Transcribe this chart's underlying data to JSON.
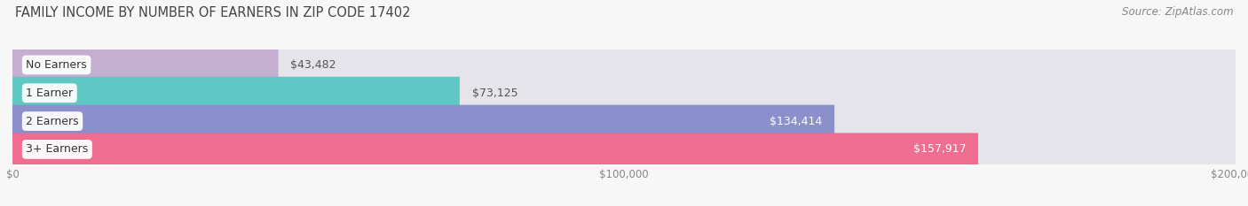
{
  "title": "FAMILY INCOME BY NUMBER OF EARNERS IN ZIP CODE 17402",
  "source": "Source: ZipAtlas.com",
  "categories": [
    "No Earners",
    "1 Earner",
    "2 Earners",
    "3+ Earners"
  ],
  "values": [
    43482,
    73125,
    134414,
    157917
  ],
  "bar_colors": [
    "#c4afd0",
    "#60c8c4",
    "#8b8fcc",
    "#ee6d90"
  ],
  "bar_bg_color": "#e4e4ea",
  "label_colors": [
    "#555555",
    "#555555",
    "#ffffff",
    "#ffffff"
  ],
  "xlim": [
    0,
    200000
  ],
  "title_fontsize": 10.5,
  "source_fontsize": 8.5,
  "tick_fontsize": 8.5,
  "label_fontsize": 9,
  "category_fontsize": 9,
  "background_color": "#f7f7f7"
}
